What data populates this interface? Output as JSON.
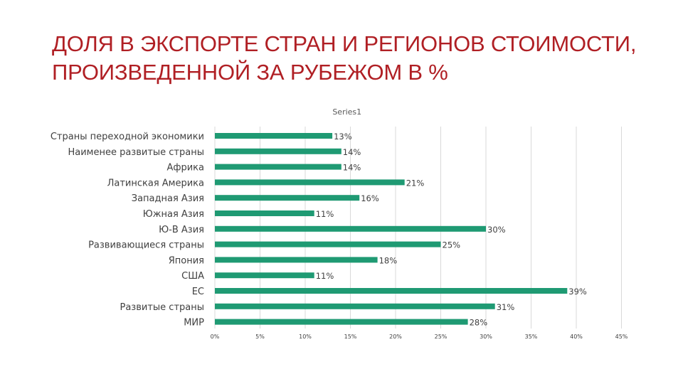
{
  "title": "ДОЛЯ В ЭКСПОРТЕ СТРАН И РЕГИОНОВ СТОИМОСТИ, ПРОИЗВЕДЕННОЙ ЗА РУБЕЖОМ В %",
  "chart_data": {
    "type": "bar",
    "orientation": "horizontal",
    "series_name": "Series1",
    "categories": [
      "Страны переходной экономики",
      "Наименее развитые страны",
      "Африка",
      "Латинская Америка",
      "Западная Азия",
      "Южная Азия",
      "Ю-В Азия",
      "Развивающиеся страны",
      "Япония",
      "США",
      "ЕС",
      "Развитые страны",
      "МИР"
    ],
    "values": [
      13,
      14,
      14,
      21,
      16,
      11,
      30,
      25,
      18,
      11,
      39,
      31,
      28
    ],
    "data_labels": [
      "13%",
      "14%",
      "14%",
      "21%",
      "16%",
      "11%",
      "30%",
      "25%",
      "18%",
      "11%",
      "39%",
      "31%",
      "28%"
    ],
    "x_ticks": [
      0,
      5,
      10,
      15,
      20,
      25,
      30,
      35,
      40,
      45
    ],
    "x_tick_labels": [
      "0%",
      "5%",
      "10%",
      "15%",
      "20%",
      "25%",
      "30%",
      "35%",
      "40%",
      "45%"
    ],
    "xlim": [
      0,
      45
    ],
    "grid": true,
    "bar_color": "#1f9a73",
    "grid_color": "#d9d9d9"
  }
}
